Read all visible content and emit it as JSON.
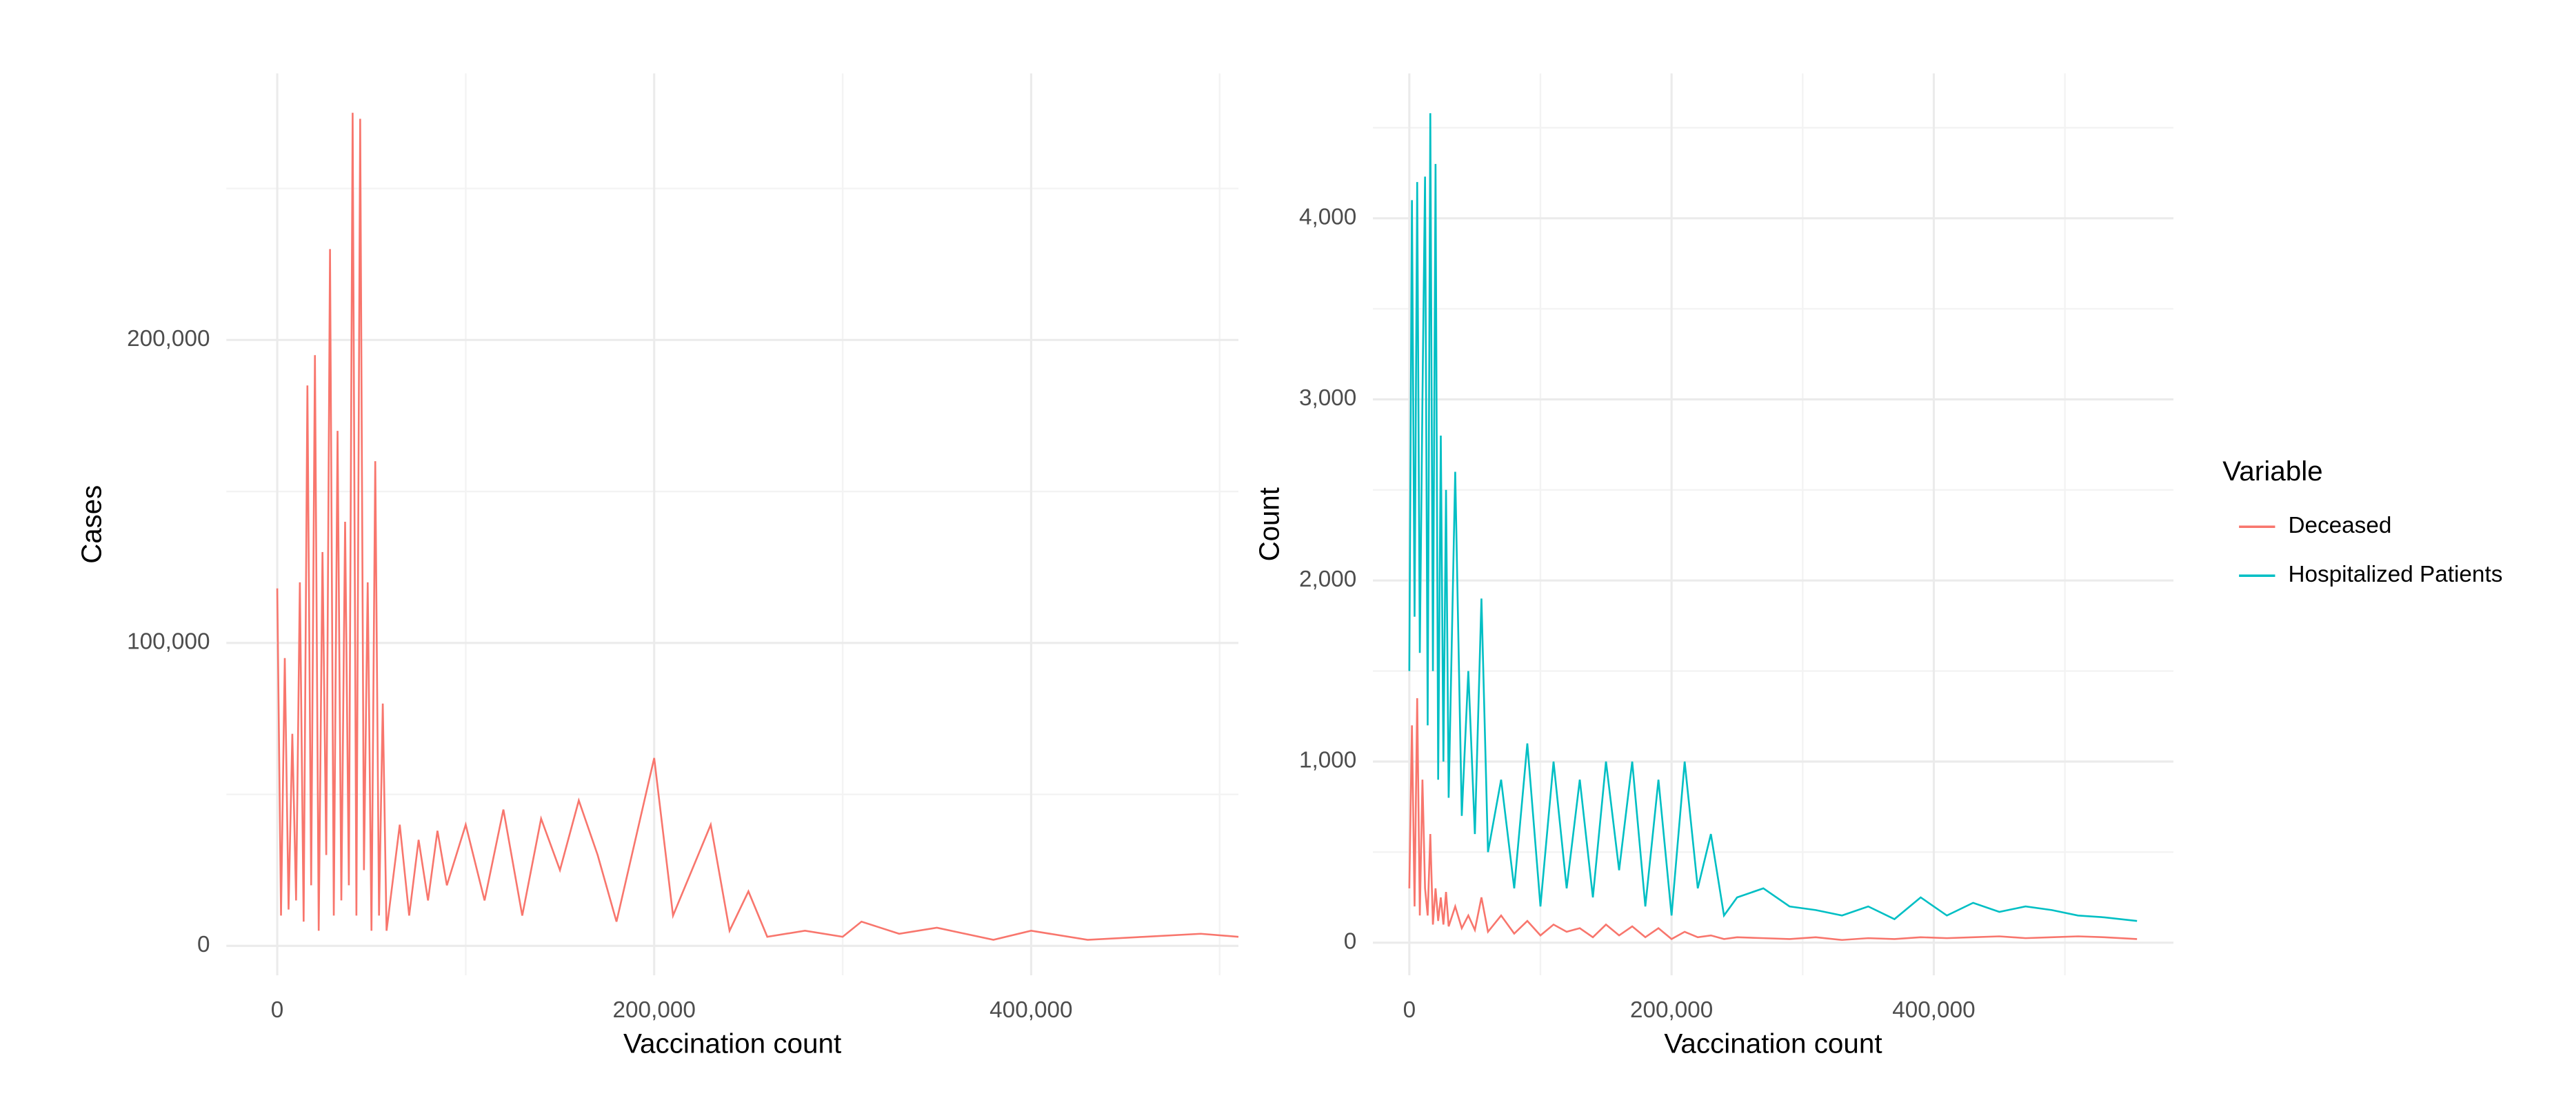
{
  "chart_data": [
    {
      "type": "line",
      "x_label": "Vaccination count",
      "y_label": "Cases",
      "x": [
        0,
        2000,
        4000,
        6000,
        8000,
        10000,
        12000,
        14000,
        16000,
        18000,
        20000,
        22000,
        24000,
        26000,
        28000,
        30000,
        32000,
        34000,
        36000,
        38000,
        40000,
        42000,
        44000,
        46000,
        48000,
        50000,
        52000,
        54000,
        56000,
        58000,
        65000,
        70000,
        75000,
        80000,
        85000,
        90000,
        100000,
        110000,
        120000,
        130000,
        140000,
        150000,
        160000,
        170000,
        180000,
        190000,
        200000,
        210000,
        220000,
        230000,
        240000,
        250000,
        260000,
        280000,
        300000,
        310000,
        330000,
        350000,
        380000,
        400000,
        430000,
        460000,
        490000,
        510000
      ],
      "series": [
        {
          "color": "#F8766D",
          "values": [
            118000,
            10000,
            95000,
            12000,
            70000,
            15000,
            120000,
            8000,
            185000,
            20000,
            195000,
            5000,
            130000,
            30000,
            230000,
            10000,
            170000,
            15000,
            140000,
            20000,
            275000,
            10000,
            273000,
            25000,
            120000,
            5000,
            160000,
            10000,
            80000,
            5000,
            40000,
            10000,
            35000,
            15000,
            38000,
            20000,
            40000,
            15000,
            45000,
            10000,
            42000,
            25000,
            48000,
            30000,
            8000,
            35000,
            62000,
            10000,
            25000,
            40000,
            5000,
            18000,
            3000,
            5000,
            3000,
            8000,
            4000,
            6000,
            2000,
            5000,
            2000,
            3000,
            4000,
            3000
          ]
        }
      ],
      "xlim": [
        -27000,
        510000
      ],
      "ylim": [
        -9700,
        288000
      ],
      "xticks": [
        {
          "value": 0,
          "label": "0"
        },
        {
          "value": 200000,
          "label": "200,000"
        },
        {
          "value": 400000,
          "label": "400,000"
        }
      ],
      "yticks": [
        {
          "value": 0,
          "label": "0"
        },
        {
          "value": 100000,
          "label": "100,000"
        },
        {
          "value": 200000,
          "label": "200,000"
        }
      ],
      "xminor": [
        100000,
        300000,
        500000
      ],
      "yminor": [
        50000,
        150000,
        250000
      ],
      "grid": true
    },
    {
      "type": "line",
      "x_label": "Vaccination count",
      "y_label": "Count",
      "legend_title": "Variable",
      "legend": "right",
      "x": [
        0,
        2000,
        4000,
        6000,
        8000,
        10000,
        12000,
        14000,
        16000,
        18000,
        20000,
        22000,
        24000,
        26000,
        28000,
        30000,
        35000,
        40000,
        45000,
        50000,
        55000,
        60000,
        70000,
        80000,
        90000,
        100000,
        110000,
        120000,
        130000,
        140000,
        150000,
        160000,
        170000,
        180000,
        190000,
        200000,
        210000,
        220000,
        230000,
        240000,
        250000,
        270000,
        290000,
        310000,
        330000,
        350000,
        370000,
        390000,
        410000,
        430000,
        450000,
        470000,
        490000,
        510000,
        530000,
        555000
      ],
      "series": [
        {
          "name": "Hospitalized Patients",
          "color": "#00BFC4",
          "values": [
            1500,
            4100,
            1800,
            4200,
            1600,
            3000,
            4230,
            1200,
            4580,
            1500,
            4300,
            900,
            2800,
            1000,
            2500,
            800,
            2600,
            700,
            1500,
            600,
            1900,
            500,
            900,
            300,
            1100,
            200,
            1000,
            300,
            900,
            250,
            1000,
            400,
            1000,
            200,
            900,
            150,
            1000,
            300,
            600,
            150,
            250,
            300,
            200,
            180,
            150,
            200,
            130,
            250,
            150,
            220,
            170,
            200,
            180,
            150,
            140,
            120
          ]
        },
        {
          "name": "Deceased",
          "color": "#F8766D",
          "values": [
            300,
            1200,
            200,
            1350,
            150,
            900,
            300,
            150,
            600,
            100,
            300,
            120,
            250,
            100,
            280,
            90,
            200,
            80,
            150,
            70,
            250,
            60,
            150,
            50,
            120,
            40,
            100,
            60,
            80,
            30,
            100,
            40,
            90,
            30,
            80,
            20,
            60,
            30,
            40,
            20,
            30,
            25,
            20,
            30,
            15,
            25,
            20,
            30,
            25,
            30,
            35,
            25,
            30,
            35,
            30,
            20
          ]
        }
      ],
      "legend_order": [
        1,
        0
      ],
      "xlim": [
        -27750,
        582750
      ],
      "ylim": [
        -180,
        4800
      ],
      "xticks": [
        {
          "value": 0,
          "label": "0"
        },
        {
          "value": 200000,
          "label": "200,000"
        },
        {
          "value": 400000,
          "label": "400,000"
        }
      ],
      "yticks": [
        {
          "value": 0,
          "label": "0"
        },
        {
          "value": 1000,
          "label": "1,000"
        },
        {
          "value": 2000,
          "label": "2,000"
        },
        {
          "value": 3000,
          "label": "3,000"
        },
        {
          "value": 4000,
          "label": "4,000"
        }
      ],
      "xminor": [
        100000,
        300000,
        500000
      ],
      "yminor": [
        500,
        1500,
        2500,
        3500,
        4500
      ],
      "grid": true
    }
  ]
}
